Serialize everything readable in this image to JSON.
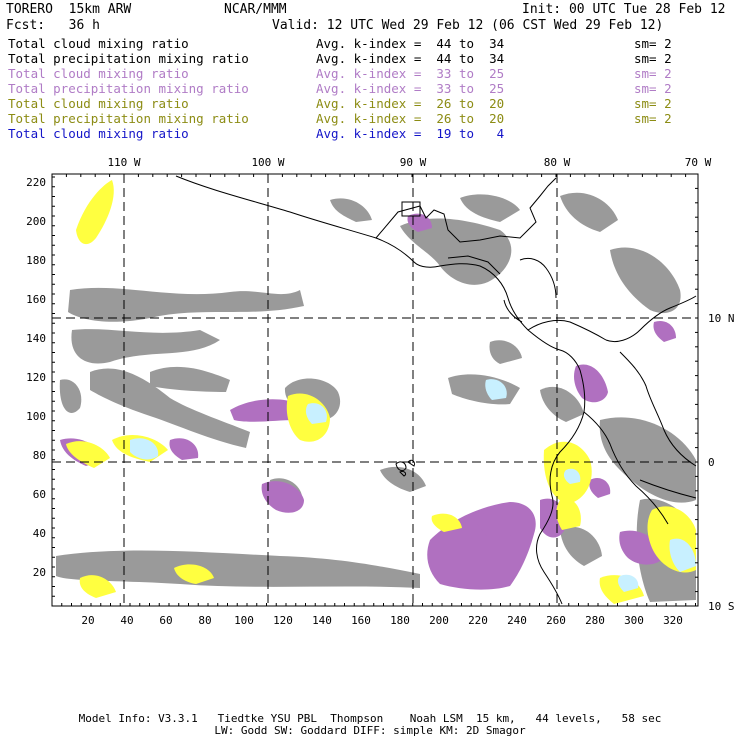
{
  "header": {
    "model": "TORERO  15km ARW",
    "org": "NCAR/MMM",
    "init": "Init: 00 UTC Tue 28 Feb 12",
    "fcst": "Fcst:   36 h",
    "valid": "Valid: 12 UTC Wed 29 Feb 12 (06 CST Wed 29 Feb 12)"
  },
  "legend": [
    {
      "name": "Total cloud mixing ratio",
      "kidx": "Avg. k-index =  44 to  34",
      "sm": "sm= 2",
      "color": "#000000"
    },
    {
      "name": "Total precipitation mixing ratio",
      "kidx": "Avg. k-index =  44 to  34",
      "sm": "sm= 2",
      "color": "#000000"
    },
    {
      "name": "Total cloud mixing ratio",
      "kidx": "Avg. k-index =  33 to  25",
      "sm": "sm= 2",
      "color": "#b07cc6"
    },
    {
      "name": "Total precipitation mixing ratio",
      "kidx": "Avg. k-index =  33 to  25",
      "sm": "sm= 2",
      "color": "#b07cc6"
    },
    {
      "name": "Total cloud mixing ratio",
      "kidx": "Avg. k-index =  26 to  20",
      "sm": "sm= 2",
      "color": "#8c8c14"
    },
    {
      "name": "Total precipitation mixing ratio",
      "kidx": "Avg. k-index =  26 to  20",
      "sm": "sm= 2",
      "color": "#8c8c14"
    },
    {
      "name": "Total cloud mixing ratio",
      "kidx": "Avg. k-index =  19 to   4",
      "sm": "",
      "color": "#1414c8"
    }
  ],
  "axes": {
    "top_lon": [
      "110 W",
      "100 W",
      "90 W",
      "80 W",
      "70 W"
    ],
    "right_lat": [
      "10 N",
      "0",
      "10 S"
    ],
    "left_y": [
      "20",
      "40",
      "60",
      "80",
      "100",
      "120",
      "140",
      "160",
      "180",
      "200",
      "220"
    ],
    "bottom_x": [
      "20",
      "40",
      "60",
      "80",
      "100",
      "120",
      "140",
      "160",
      "180",
      "200",
      "220",
      "240",
      "260",
      "280",
      "300",
      "320"
    ]
  },
  "colors": {
    "gray": "#9a9a9a",
    "purple": "#b070c0",
    "yellow": "#ffff40",
    "cyan": "#c8f0ff",
    "line": "#000000"
  },
  "footer": {
    "line1": "Model Info: V3.3.1   Tiedtke YSU PBL  Thompson    Noah LSM  15 km,   44 levels,   58 sec",
    "line2": "LW: Godd SW: Goddard DIFF: simple KM: 2D Smagor"
  }
}
